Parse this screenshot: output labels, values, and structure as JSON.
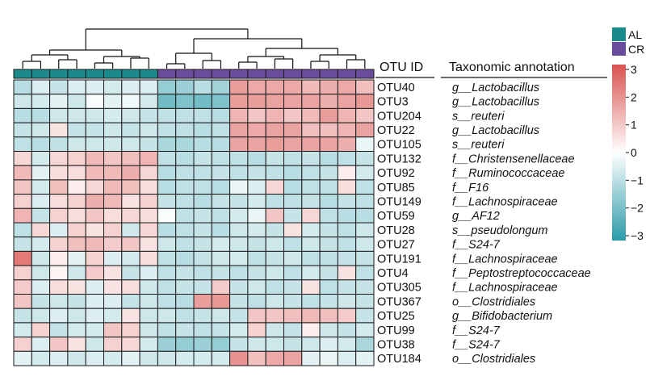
{
  "chart_data": {
    "type": "heatmap",
    "header": {
      "otu_col": "OTU ID",
      "tax_col": "Taxonomic annotation"
    },
    "groups": [
      {
        "name": "AL",
        "color": "#1b8a8a"
      },
      {
        "name": "CR",
        "color": "#6a4c9c"
      }
    ],
    "column_groups": [
      "AL",
      "AL",
      "AL",
      "AL",
      "AL",
      "AL",
      "AL",
      "AL",
      "CR",
      "CR",
      "CR",
      "CR",
      "CR",
      "CR",
      "CR",
      "CR",
      "CR",
      "CR",
      "CR",
      "CR"
    ],
    "rows": [
      "OTU40",
      "OTU3",
      "OTU204",
      "OTU22",
      "OTU105",
      "OTU132",
      "OTU92",
      "OTU85",
      "OTU149",
      "OTU59",
      "OTU28",
      "OTU27",
      "OTU191",
      "OTU4",
      "OTU305",
      "OTU367",
      "OTU25",
      "OTU99",
      "OTU38",
      "OTU184"
    ],
    "taxonomy": [
      {
        "rank": "g",
        "name": "Lactobacillus"
      },
      {
        "rank": "g",
        "name": "Lactobacillus"
      },
      {
        "rank": "s",
        "name": "reuteri"
      },
      {
        "rank": "g",
        "name": "Lactobacillus"
      },
      {
        "rank": "s",
        "name": "reuteri"
      },
      {
        "rank": "f",
        "name": "Christensenellaceae"
      },
      {
        "rank": "f",
        "name": "Ruminococcaceae"
      },
      {
        "rank": "f",
        "name": "F16"
      },
      {
        "rank": "f",
        "name": "Lachnospiraceae"
      },
      {
        "rank": "g",
        "name": "AF12"
      },
      {
        "rank": "s",
        "name": "pseudolongum"
      },
      {
        "rank": "f",
        "name": "S24-7"
      },
      {
        "rank": "f",
        "name": "Lachnospiraceae"
      },
      {
        "rank": "f",
        "name": "Peptostreptococcaceae"
      },
      {
        "rank": "f",
        "name": "Lachnospiraceae"
      },
      {
        "rank": "o",
        "name": "Clostridiales"
      },
      {
        "rank": "g",
        "name": "Bifidobacterium"
      },
      {
        "rank": "f",
        "name": "S24-7"
      },
      {
        "rank": "f",
        "name": "S24-7"
      },
      {
        "rank": "o",
        "name": "Clostridiales"
      }
    ],
    "values": [
      [
        -1,
        -0.5,
        -0.8,
        -0.5,
        -0.5,
        -0.6,
        -0.5,
        -0.5,
        -1.5,
        -1.4,
        -1,
        -1.3,
        1.7,
        1.5,
        1.5,
        1.5,
        1.2,
        1.4,
        1.5,
        1.1
      ],
      [
        -0.7,
        -0.6,
        -0.4,
        -0.7,
        -0.1,
        -0.4,
        -0.2,
        -0.6,
        -2,
        -1.8,
        -2,
        -1.8,
        1.7,
        1.7,
        1.6,
        1.6,
        1.6,
        1.4,
        1.6,
        1.8
      ],
      [
        -1,
        -1,
        -0.7,
        -0.7,
        -0.7,
        -0.6,
        -0.7,
        -0.8,
        -0.9,
        -0.9,
        -0.9,
        -1,
        1.3,
        1,
        1.3,
        1,
        1.2,
        1.7,
        1.3,
        1
      ],
      [
        -0.8,
        -0.7,
        0.5,
        -0.8,
        -0.8,
        -0.7,
        -0.8,
        -0.7,
        -0.9,
        -0.9,
        -1,
        -0.9,
        1.6,
        1.5,
        1.6,
        1.6,
        1.1,
        1.1,
        1.3,
        1.6
      ],
      [
        -0.9,
        -1,
        -0.9,
        -0.7,
        -0.7,
        -0.7,
        -0.7,
        -0.8,
        -1.2,
        -1.2,
        -1,
        -1,
        1.6,
        1.6,
        1.7,
        1.6,
        1.6,
        1.6,
        1.4,
        -0.3
      ],
      [
        0.7,
        -0.6,
        0.7,
        0.8,
        1.2,
        1,
        1.1,
        1.3,
        -0.9,
        -1,
        -0.8,
        -0.9,
        -0.9,
        -1,
        -0.8,
        -0.9,
        -0.8,
        -1,
        -0.9,
        -0.8
      ],
      [
        1.2,
        -0.4,
        0.6,
        0.6,
        1.2,
        1.2,
        1.4,
        0.7,
        -1,
        -0.9,
        -0.9,
        -0.8,
        -0.9,
        -0.8,
        -0.9,
        -1,
        -0.9,
        -0.8,
        0.3,
        -0.6
      ],
      [
        1,
        -0.6,
        1.1,
        0.3,
        0.7,
        1.2,
        1.1,
        0.6,
        -1,
        -0.9,
        -0.9,
        -1,
        -0.3,
        -0.5,
        0.7,
        -1,
        -0.9,
        -0.9,
        0.6,
        -0.9
      ],
      [
        0.8,
        -0.5,
        0.6,
        0.8,
        1.4,
        1.2,
        0.5,
        0.8,
        -0.8,
        -0.9,
        -1,
        -0.8,
        -0.8,
        -0.6,
        -0.9,
        -0.9,
        -0.8,
        -1,
        -0.8,
        -0.9
      ],
      [
        1.3,
        -0.8,
        0.8,
        0.6,
        1,
        0.6,
        0.7,
        0.6,
        -0.1,
        -0.9,
        -0.8,
        -0.9,
        -0.6,
        -0.3,
        1,
        -0.8,
        0.7,
        -0.9,
        -1,
        -1
      ],
      [
        -0.9,
        0.7,
        -0.5,
        0.8,
        0.5,
        0.8,
        -0.7,
        0.7,
        -1,
        -0.9,
        -0.8,
        -1,
        -0.7,
        -0.6,
        -0.8,
        0.5,
        -0.6,
        -0.8,
        -0.9,
        -0.7
      ],
      [
        -0.8,
        -0.6,
        0.8,
        1.1,
        1.2,
        0.9,
        1,
        0.5,
        -0.7,
        -0.9,
        -0.8,
        -0.6,
        -0.7,
        -0.8,
        -0.7,
        -0.9,
        -0.7,
        -0.8,
        -0.9,
        -0.7
      ],
      [
        2.3,
        -0.7,
        0.3,
        -0.4,
        0.8,
        -0.5,
        -0.6,
        0.6,
        -0.9,
        -1,
        -0.8,
        -0.7,
        -0.6,
        -0.9,
        -0.8,
        -0.7,
        -0.9,
        -0.9,
        -0.8,
        -0.8
      ],
      [
        0.8,
        -0.7,
        0.2,
        -0.7,
        0.9,
        0.5,
        -0.8,
        -0.5,
        -0.9,
        -0.8,
        -0.9,
        -0.8,
        -0.9,
        -0.8,
        -0.7,
        -0.9,
        -0.6,
        -0.8,
        0.5,
        -0.9
      ],
      [
        0.9,
        -0.5,
        0.6,
        0.5,
        -0.5,
        0.5,
        0.6,
        -0.7,
        -0.9,
        -0.8,
        -0.8,
        0.9,
        -0.8,
        -0.7,
        -0.9,
        -0.8,
        0.5,
        -0.9,
        -0.8,
        -0.8
      ],
      [
        1,
        -0.8,
        -0.7,
        -0.8,
        -0.5,
        -0.5,
        -0.8,
        -0.7,
        -0.9,
        -1,
        1.7,
        1.8,
        -0.8,
        -0.9,
        -0.7,
        -0.8,
        -0.9,
        -0.8,
        -0.7,
        -0.8
      ],
      [
        -0.8,
        -0.7,
        -0.5,
        -0.7,
        -0.5,
        -0.6,
        0.5,
        -0.7,
        -0.7,
        -0.9,
        -0.8,
        -0.7,
        -0.8,
        1,
        1,
        1.1,
        1.2,
        1.1,
        0.9,
        -0.8
      ],
      [
        -0.6,
        0.8,
        -0.8,
        -0.6,
        -0.6,
        1,
        0.8,
        -0.7,
        -0.9,
        -0.8,
        -0.9,
        -0.8,
        -0.6,
        0.8,
        -0.7,
        -0.8,
        0.3,
        -0.7,
        -0.8,
        -0.6
      ],
      [
        0.8,
        -0.5,
        1,
        0.5,
        -0.7,
        0.8,
        0.7,
        -0.6,
        -1.4,
        -1.5,
        -1.4,
        -1.5,
        -0.8,
        -0.7,
        -0.7,
        -0.8,
        -0.7,
        -0.5,
        -0.6,
        -1.2
      ],
      [
        -0.4,
        -0.6,
        -0.5,
        -0.7,
        -0.5,
        -0.6,
        -0.4,
        -0.7,
        -0.7,
        -0.6,
        -0.6,
        -0.6,
        1.9,
        1.1,
        1.5,
        1.6,
        -0.4,
        -0.3,
        -0.5,
        -0.4
      ]
    ],
    "color_scale": {
      "min": -3,
      "max": 3,
      "colors": [
        "#2a9aa8",
        "#ffffff",
        "#d9534f"
      ],
      "ticks": [
        3,
        2,
        1,
        0,
        -1,
        -2,
        -3
      ],
      "tick_labels": [
        "3",
        "2",
        "1",
        "0",
        "−1",
        "−2",
        "−3"
      ]
    },
    "dendrogram": "top, columns clustered"
  }
}
